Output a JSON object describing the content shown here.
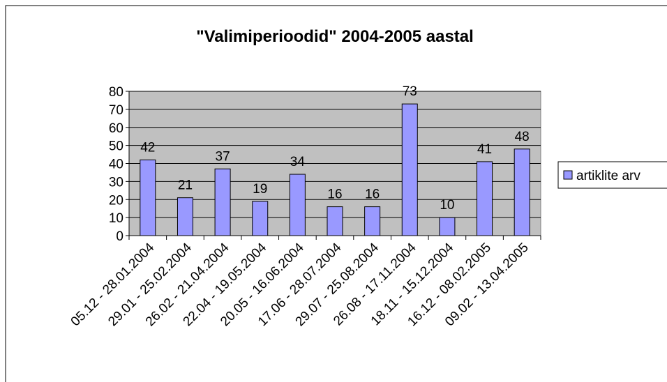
{
  "chart_data": {
    "type": "bar",
    "title": "\"Valimiperioodid\" 2004-2005 aastal",
    "categories": [
      "05.12 - 28.01.2004",
      "29.01 - 25.02.2004",
      "26.02 - 21.04.2004",
      "22.04 - 19.05.2004",
      "20.05 - 16.06.2004",
      "17.06 - 28.07.2004",
      "29.07 - 25.08.2004",
      "26.08 - 17.11.2004",
      "18.11 - 15.12.2004",
      "16.12 - 08.02.2005",
      "09.02 - 13.04.2005"
    ],
    "series": [
      {
        "name": "artiklite arv",
        "color": "#9999ff",
        "values": [
          42,
          21,
          37,
          19,
          34,
          16,
          16,
          73,
          10,
          41,
          48
        ]
      }
    ],
    "ylim": [
      0,
      80
    ],
    "yticks": [
      0,
      10,
      20,
      30,
      40,
      50,
      60,
      70,
      80
    ],
    "grid": true,
    "legend": "right"
  }
}
